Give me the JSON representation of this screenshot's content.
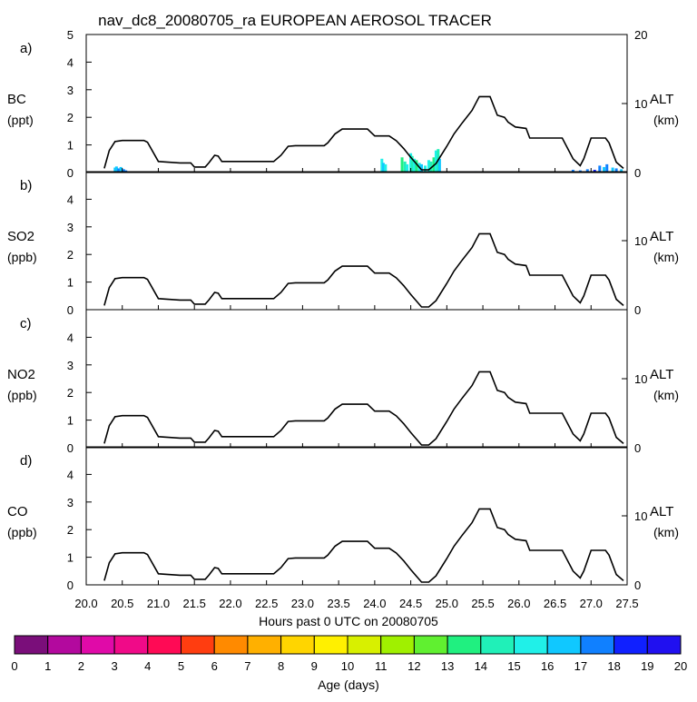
{
  "title": "nav_dc8_20080705_ra EUROPEAN AEROSOL TRACER",
  "panels": [
    {
      "letter": "a)",
      "species": "BC",
      "unit": "(ppt)"
    },
    {
      "letter": "b)",
      "species": "SO2",
      "unit": "(ppb)"
    },
    {
      "letter": "c)",
      "species": "NO2",
      "unit": "(ppb)"
    },
    {
      "letter": "d)",
      "species": "CO",
      "unit": "(ppb)"
    }
  ],
  "right_axis": {
    "label": "ALT",
    "unit": "(km)",
    "ticks": [
      "0",
      "10",
      "20"
    ]
  },
  "left_ticks_full": [
    "0",
    "1",
    "2",
    "3",
    "4",
    "5"
  ],
  "left_ticks": [
    "0",
    "1",
    "2",
    "3",
    "4"
  ],
  "x_ticks": [
    "20.0",
    "20.5",
    "21.0",
    "21.5",
    "22.0",
    "22.5",
    "23.0",
    "23.5",
    "24.0",
    "24.5",
    "25.0",
    "25.5",
    "26.0",
    "26.5",
    "27.0",
    "27.5"
  ],
  "xlabel": "Hours past 0 UTC on 20080705",
  "colorbar": {
    "label": "Age (days)",
    "ticks": [
      "0",
      "1",
      "2",
      "3",
      "4",
      "5",
      "6",
      "7",
      "8",
      "9",
      "10",
      "11",
      "12",
      "13",
      "14",
      "15",
      "16",
      "17",
      "18",
      "19",
      "20"
    ],
    "colors": [
      "#7a0e7a",
      "#b3099e",
      "#e00aa8",
      "#f00a88",
      "#ff0a55",
      "#ff3d10",
      "#ff8a00",
      "#ffb000",
      "#ffd500",
      "#fff000",
      "#d8f000",
      "#a0f000",
      "#60f030",
      "#20f080",
      "#20f0b8",
      "#20f0e8",
      "#10c8ff",
      "#1080ff",
      "#1020ff",
      "#2010f0"
    ]
  },
  "chart_data": {
    "type": "line",
    "x_range": [
      20.0,
      27.5
    ],
    "left_ylim": [
      0,
      5
    ],
    "right_ylim": [
      0,
      20
    ],
    "altitude_km": [
      [
        20.25,
        0.6
      ],
      [
        20.32,
        3.2
      ],
      [
        20.4,
        4.5
      ],
      [
        20.5,
        4.65
      ],
      [
        20.8,
        4.65
      ],
      [
        20.85,
        4.4
      ],
      [
        21.0,
        1.6
      ],
      [
        21.3,
        1.4
      ],
      [
        21.45,
        1.4
      ],
      [
        21.5,
        0.8
      ],
      [
        21.65,
        0.8
      ],
      [
        21.7,
        1.4
      ],
      [
        21.78,
        2.5
      ],
      [
        21.83,
        2.4
      ],
      [
        21.88,
        1.6
      ],
      [
        22.6,
        1.6
      ],
      [
        22.7,
        2.5
      ],
      [
        22.8,
        3.8
      ],
      [
        22.9,
        3.9
      ],
      [
        23.3,
        3.9
      ],
      [
        23.35,
        4.3
      ],
      [
        23.45,
        5.6
      ],
      [
        23.55,
        6.3
      ],
      [
        23.9,
        6.3
      ],
      [
        24.0,
        5.3
      ],
      [
        24.2,
        5.3
      ],
      [
        24.3,
        4.6
      ],
      [
        24.4,
        3.5
      ],
      [
        24.5,
        2.2
      ],
      [
        24.6,
        1.0
      ],
      [
        24.65,
        0.4
      ],
      [
        24.75,
        0.4
      ],
      [
        24.85,
        1.3
      ],
      [
        25.0,
        3.8
      ],
      [
        25.1,
        5.6
      ],
      [
        25.2,
        7.0
      ],
      [
        25.35,
        9.0
      ],
      [
        25.45,
        11.0
      ],
      [
        25.6,
        11.0
      ],
      [
        25.7,
        8.3
      ],
      [
        25.8,
        8.0
      ],
      [
        25.85,
        7.3
      ],
      [
        25.95,
        6.6
      ],
      [
        26.1,
        6.4
      ],
      [
        26.15,
        5.0
      ],
      [
        26.6,
        5.0
      ],
      [
        26.75,
        2.0
      ],
      [
        26.85,
        1.0
      ],
      [
        26.9,
        2.0
      ],
      [
        27.0,
        5.0
      ],
      [
        27.2,
        5.0
      ],
      [
        27.25,
        4.3
      ],
      [
        27.35,
        1.5
      ],
      [
        27.45,
        0.6
      ]
    ],
    "bc_age_bars": [
      [
        20.4,
        0.18,
        16
      ],
      [
        20.42,
        0.22,
        16
      ],
      [
        20.45,
        0.15,
        17
      ],
      [
        20.48,
        0.2,
        16
      ],
      [
        20.52,
        0.12,
        17
      ],
      [
        20.55,
        0.08,
        17
      ],
      [
        24.1,
        0.5,
        15
      ],
      [
        24.12,
        0.35,
        16
      ],
      [
        24.15,
        0.3,
        15
      ],
      [
        24.38,
        0.55,
        13
      ],
      [
        24.42,
        0.4,
        14
      ],
      [
        24.45,
        0.3,
        15
      ],
      [
        24.5,
        0.7,
        15
      ],
      [
        24.52,
        0.6,
        14
      ],
      [
        24.55,
        0.5,
        15
      ],
      [
        24.58,
        0.45,
        13
      ],
      [
        24.62,
        0.35,
        15
      ],
      [
        24.65,
        0.3,
        16
      ],
      [
        24.7,
        0.25,
        15
      ],
      [
        24.75,
        0.45,
        15
      ],
      [
        24.78,
        0.4,
        14
      ],
      [
        24.82,
        0.55,
        13
      ],
      [
        24.85,
        0.8,
        15
      ],
      [
        24.88,
        0.85,
        14
      ],
      [
        24.9,
        0.5,
        16
      ],
      [
        25.4,
        0.05,
        17
      ],
      [
        26.75,
        0.1,
        17
      ],
      [
        26.85,
        0.08,
        17
      ],
      [
        26.95,
        0.12,
        17
      ],
      [
        27.05,
        0.1,
        18
      ],
      [
        27.12,
        0.25,
        17
      ],
      [
        27.18,
        0.2,
        16
      ],
      [
        27.22,
        0.3,
        17
      ],
      [
        27.3,
        0.18,
        16
      ],
      [
        27.35,
        0.15,
        17
      ],
      [
        27.42,
        0.12,
        16
      ]
    ]
  }
}
